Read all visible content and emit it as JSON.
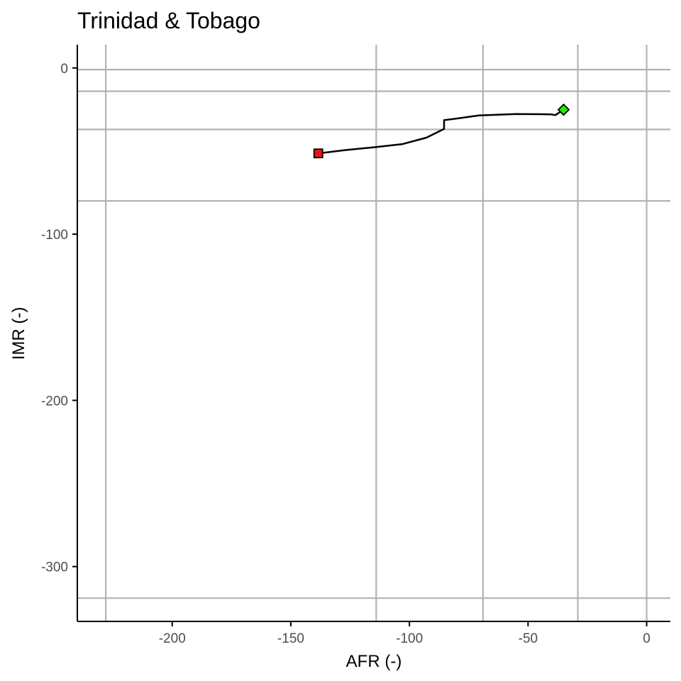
{
  "chart_data": {
    "type": "line",
    "title": "Trinidad & Tobago",
    "xlabel": "AFR (-)",
    "ylabel": "IMR (-)",
    "xlim": [
      -240,
      10
    ],
    "ylim": [
      -333,
      14
    ],
    "x_ticks": [
      -200,
      -150,
      -100,
      -50,
      0
    ],
    "x_tick_labels": [
      "-200",
      "-150",
      "-100",
      "-50",
      "0"
    ],
    "y_ticks": [
      0,
      -100,
      -200,
      -300
    ],
    "y_tick_labels": [
      "0",
      "-100",
      "-200",
      "-300"
    ],
    "reference_lines_x": [
      -228,
      -114,
      -69,
      -29,
      0
    ],
    "reference_lines_y": [
      -1,
      -14,
      -37,
      -80,
      -319
    ],
    "grid": false,
    "series": [
      {
        "x": [
          -138.4,
          -127.5,
          -115.0,
          -102.9,
          -92.8,
          -85.4,
          -85.4,
          -79.0,
          -70.8,
          -55.1,
          -40.2,
          -38.5,
          -35.0
        ],
        "y": [
          -51.4,
          -49.5,
          -47.7,
          -45.8,
          -41.9,
          -36.7,
          -31.4,
          -30.2,
          -28.6,
          -27.7,
          -27.9,
          -28.4,
          -25.1
        ],
        "color": "#000000"
      }
    ],
    "markers": [
      {
        "point": "start",
        "x": -138.4,
        "y": -51.4,
        "shape": "square",
        "color": "#ee1111"
      },
      {
        "point": "end",
        "x": -35.0,
        "y": -25.1,
        "shape": "diamond",
        "color": "#22ee00"
      }
    ]
  }
}
